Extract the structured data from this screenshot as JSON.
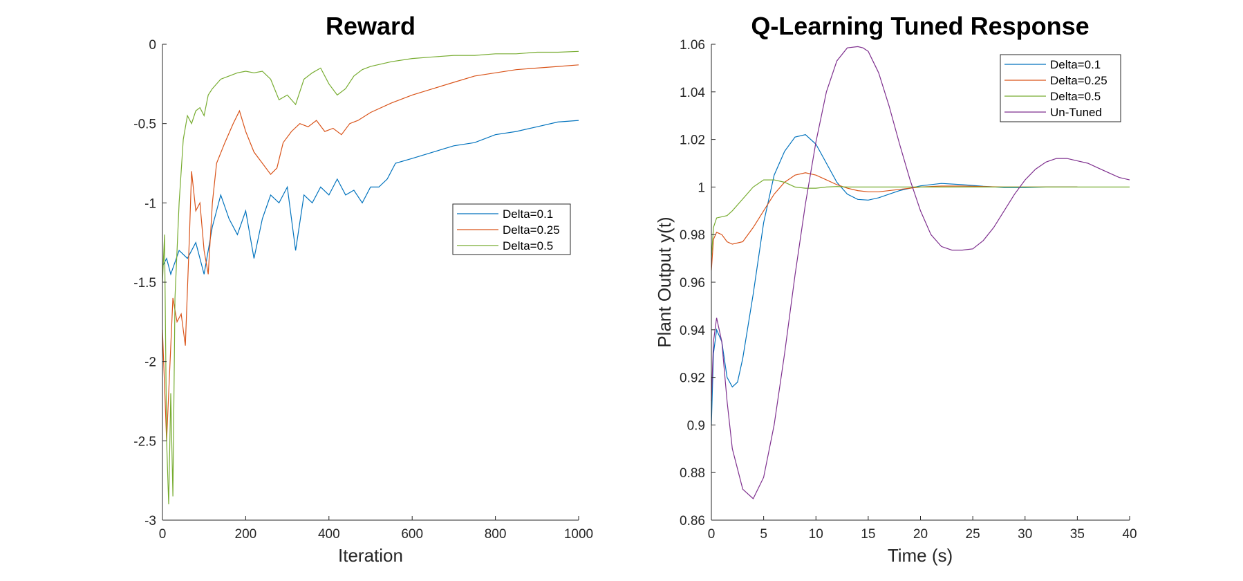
{
  "chart_data": [
    {
      "type": "line",
      "title": "Reward",
      "xlabel": "Iteration",
      "ylabel": "",
      "xlim": [
        0,
        1000
      ],
      "ylim": [
        -3,
        0
      ],
      "xticks": [
        0,
        200,
        400,
        600,
        800,
        1000
      ],
      "xtick_labels": [
        "0",
        "200",
        "400",
        "600",
        "800",
        "1000"
      ],
      "yticks": [
        -3,
        -2.5,
        -2,
        -1.5,
        -1,
        -0.5,
        0
      ],
      "ytick_labels": [
        "-3",
        "-2.5",
        "-2",
        "-1.5",
        "-1",
        "-0.5",
        "0"
      ],
      "grid": false,
      "legend_position": "middle-right",
      "series": [
        {
          "name": "Delta=0.1",
          "color": "#0072BD",
          "x": [
            0,
            10,
            20,
            40,
            60,
            80,
            100,
            120,
            140,
            160,
            180,
            200,
            220,
            240,
            260,
            280,
            300,
            320,
            340,
            360,
            380,
            400,
            420,
            440,
            460,
            480,
            500,
            520,
            540,
            560,
            600,
            650,
            700,
            750,
            800,
            850,
            900,
            950,
            1000
          ],
          "y": [
            -1.4,
            -1.35,
            -1.45,
            -1.3,
            -1.35,
            -1.25,
            -1.45,
            -1.15,
            -0.95,
            -1.1,
            -1.2,
            -1.05,
            -1.35,
            -1.1,
            -0.95,
            -1.0,
            -0.9,
            -1.3,
            -0.95,
            -1.0,
            -0.9,
            -0.95,
            -0.85,
            -0.95,
            -0.92,
            -1.0,
            -0.9,
            -0.9,
            -0.85,
            -0.75,
            -0.72,
            -0.68,
            -0.64,
            -0.62,
            -0.57,
            -0.55,
            -0.52,
            -0.49,
            -0.48
          ]
        },
        {
          "name": "Delta=0.25",
          "color": "#D95319",
          "x": [
            0,
            10,
            15,
            25,
            35,
            45,
            55,
            65,
            70,
            80,
            90,
            100,
            110,
            120,
            130,
            150,
            170,
            185,
            200,
            220,
            240,
            260,
            275,
            290,
            310,
            330,
            350,
            370,
            390,
            410,
            430,
            450,
            470,
            500,
            550,
            600,
            650,
            700,
            750,
            800,
            850,
            900,
            950,
            1000
          ],
          "y": [
            -1.8,
            -2.5,
            -2.2,
            -1.6,
            -1.75,
            -1.7,
            -1.9,
            -1.2,
            -0.8,
            -1.05,
            -1.0,
            -1.3,
            -1.45,
            -1.0,
            -0.75,
            -0.62,
            -0.5,
            -0.42,
            -0.55,
            -0.68,
            -0.75,
            -0.82,
            -0.78,
            -0.62,
            -0.55,
            -0.5,
            -0.52,
            -0.48,
            -0.55,
            -0.53,
            -0.57,
            -0.5,
            -0.48,
            -0.43,
            -0.37,
            -0.32,
            -0.28,
            -0.24,
            -0.2,
            -0.18,
            -0.16,
            -0.15,
            -0.14,
            -0.13
          ]
        },
        {
          "name": "Delta=0.5",
          "color": "#77AC30",
          "x": [
            0,
            5,
            10,
            15,
            20,
            25,
            30,
            40,
            50,
            60,
            70,
            80,
            90,
            100,
            110,
            120,
            140,
            160,
            180,
            200,
            220,
            240,
            260,
            280,
            300,
            320,
            340,
            360,
            380,
            400,
            420,
            440,
            460,
            480,
            500,
            550,
            600,
            650,
            700,
            750,
            800,
            850,
            900,
            950,
            1000
          ],
          "y": [
            -1.5,
            -1.2,
            -2.5,
            -2.9,
            -2.2,
            -2.85,
            -1.6,
            -1.0,
            -0.6,
            -0.45,
            -0.5,
            -0.42,
            -0.4,
            -0.45,
            -0.32,
            -0.28,
            -0.22,
            -0.2,
            -0.18,
            -0.17,
            -0.18,
            -0.17,
            -0.22,
            -0.35,
            -0.32,
            -0.38,
            -0.22,
            -0.18,
            -0.15,
            -0.25,
            -0.32,
            -0.28,
            -0.2,
            -0.16,
            -0.14,
            -0.11,
            -0.09,
            -0.08,
            -0.07,
            -0.07,
            -0.06,
            -0.06,
            -0.05,
            -0.05,
            -0.045
          ]
        }
      ]
    },
    {
      "type": "line",
      "title": "Q-Learning Tuned Response",
      "xlabel": "Time (s)",
      "ylabel": "Plant Output y(t)",
      "xlim": [
        0,
        40
      ],
      "ylim": [
        0.86,
        1.06
      ],
      "xticks": [
        0,
        5,
        10,
        15,
        20,
        25,
        30,
        35,
        40
      ],
      "xtick_labels": [
        "0",
        "5",
        "10",
        "15",
        "20",
        "25",
        "30",
        "35",
        "40"
      ],
      "yticks": [
        0.86,
        0.88,
        0.9,
        0.92,
        0.94,
        0.96,
        0.98,
        1,
        1.02,
        1.04,
        1.06
      ],
      "ytick_labels": [
        "0.86",
        "0.88",
        "0.9",
        "0.92",
        "0.94",
        "0.96",
        "0.98",
        "1",
        "1.02",
        "1.04",
        "1.06"
      ],
      "grid": false,
      "legend_position": "top-right",
      "series": [
        {
          "name": "Delta=0.1",
          "color": "#0072BD",
          "x": [
            0,
            0.2,
            0.5,
            1,
            1.5,
            2,
            2.5,
            3,
            4,
            5,
            6,
            7,
            8,
            9,
            10,
            11,
            12,
            13,
            14,
            15,
            16,
            17,
            18,
            20,
            22,
            24,
            26,
            28,
            30,
            32,
            35
          ],
          "y": [
            0.9,
            0.93,
            0.94,
            0.935,
            0.92,
            0.916,
            0.918,
            0.928,
            0.955,
            0.985,
            1.005,
            1.015,
            1.021,
            1.022,
            1.018,
            1.01,
            1.002,
            0.997,
            0.9948,
            0.9945,
            0.9955,
            0.997,
            0.9985,
            1.0005,
            1.0015,
            1.001,
            1.0003,
            0.9998,
            0.9998,
            1.0,
            1.0
          ]
        },
        {
          "name": "Delta=0.25",
          "color": "#D95319",
          "x": [
            0,
            0.2,
            0.5,
            1,
            1.5,
            2,
            3,
            4,
            5,
            6,
            7,
            8,
            9,
            10,
            11,
            12,
            13,
            14,
            15,
            16,
            18,
            20,
            22,
            24,
            26,
            28,
            30,
            32,
            35
          ],
          "y": [
            0.965,
            0.978,
            0.981,
            0.98,
            0.977,
            0.976,
            0.977,
            0.983,
            0.99,
            0.997,
            1.002,
            1.005,
            1.006,
            1.005,
            1.003,
            1.001,
            0.9995,
            0.9985,
            0.998,
            0.998,
            0.999,
            1.0,
            1.0004,
            1.0004,
            1.0002,
            1.0,
            1.0,
            1.0,
            1.0
          ]
        },
        {
          "name": "Delta=0.5",
          "color": "#77AC30",
          "x": [
            0,
            0.2,
            0.5,
            1,
            1.5,
            2,
            3,
            4,
            5,
            6,
            7,
            8,
            9,
            10,
            11,
            12,
            13,
            14,
            15,
            17,
            20,
            25,
            30,
            40
          ],
          "y": [
            0.97,
            0.983,
            0.987,
            0.9875,
            0.988,
            0.99,
            0.995,
            1.0,
            1.003,
            1.003,
            1.002,
            1.0,
            0.9995,
            0.9995,
            1.0,
            1.0002,
            1.0,
            1.0,
            1.0,
            1.0,
            1.0,
            1.0,
            1.0,
            1.0
          ]
        },
        {
          "name": "Un-Tuned",
          "color": "#7E2F8E",
          "x": [
            0,
            0.2,
            0.5,
            1,
            1.5,
            2,
            3,
            4,
            5,
            6,
            7,
            8,
            9,
            10,
            11,
            12,
            13,
            14,
            14.5,
            15,
            16,
            17,
            18,
            19,
            20,
            21,
            22,
            23,
            24,
            25,
            26,
            27,
            28,
            29,
            30,
            31,
            32,
            33,
            34,
            35,
            36,
            37,
            38,
            39,
            40
          ],
          "y": [
            0.91,
            0.935,
            0.945,
            0.935,
            0.91,
            0.89,
            0.873,
            0.869,
            0.878,
            0.9,
            0.93,
            0.963,
            0.993,
            1.019,
            1.04,
            1.053,
            1.0585,
            1.059,
            1.0585,
            1.057,
            1.048,
            1.034,
            1.018,
            1.003,
            0.99,
            0.98,
            0.975,
            0.9735,
            0.9735,
            0.974,
            0.9775,
            0.983,
            0.99,
            0.997,
            1.003,
            1.0075,
            1.0105,
            1.012,
            1.012,
            1.011,
            1.01,
            1.008,
            1.006,
            1.004,
            1.003
          ]
        }
      ]
    }
  ]
}
